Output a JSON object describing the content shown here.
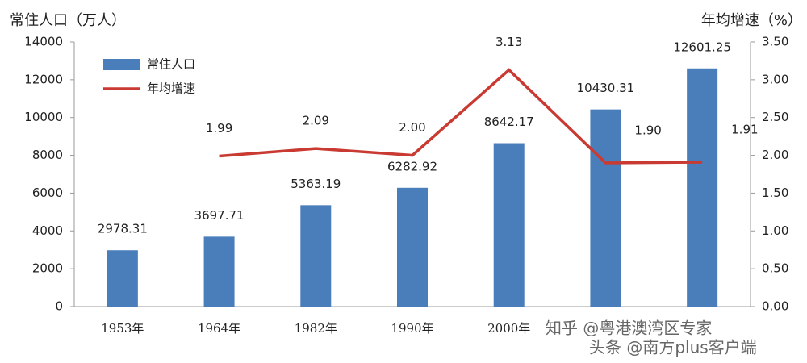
{
  "chart_data": {
    "type": "bar-line",
    "y_label": "常住人口（万人）",
    "y2_label": "年均增速（%）",
    "categories": [
      "1953年",
      "1964年",
      "1982年",
      "1990年",
      "2000年",
      null,
      null
    ],
    "series": [
      {
        "name": "常住人口",
        "type": "bar",
        "color": "#4a7ebb",
        "values": [
          2978.31,
          3697.71,
          5363.19,
          6282.92,
          8642.17,
          10430.31,
          12601.25
        ]
      },
      {
        "name": "年均增速",
        "type": "line",
        "axis": "y2",
        "color": "#c83a32",
        "values": [
          null,
          1.99,
          2.09,
          2.0,
          3.13,
          1.9,
          1.91
        ],
        "value_labels": [
          null,
          "1.99",
          "2.09",
          "2.00",
          "3.13",
          "1.90",
          "1.91"
        ]
      }
    ],
    "ylim": [
      0,
      14000
    ],
    "yticks": [
      0,
      2000,
      4000,
      6000,
      8000,
      10000,
      12000,
      14000
    ],
    "y2lim": [
      0,
      3.5
    ],
    "y2ticks": [
      {
        "value": 0,
        "label": "0.00"
      },
      {
        "value": 0.5,
        "label": "0.50"
      },
      {
        "value": 1,
        "label": "1.00"
      },
      {
        "value": 1.5,
        "label": "1.50"
      },
      {
        "value": 2,
        "label": "2.00"
      },
      {
        "value": 2.5,
        "label": "2.50"
      },
      {
        "value": 3,
        "label": "3.00"
      },
      {
        "value": 3.5,
        "label": "3.50"
      }
    ],
    "legend": "upper-left",
    "watermarks": [
      "知乎 @粤港澳湾区专家",
      "头条 @南方plus客户端"
    ]
  }
}
